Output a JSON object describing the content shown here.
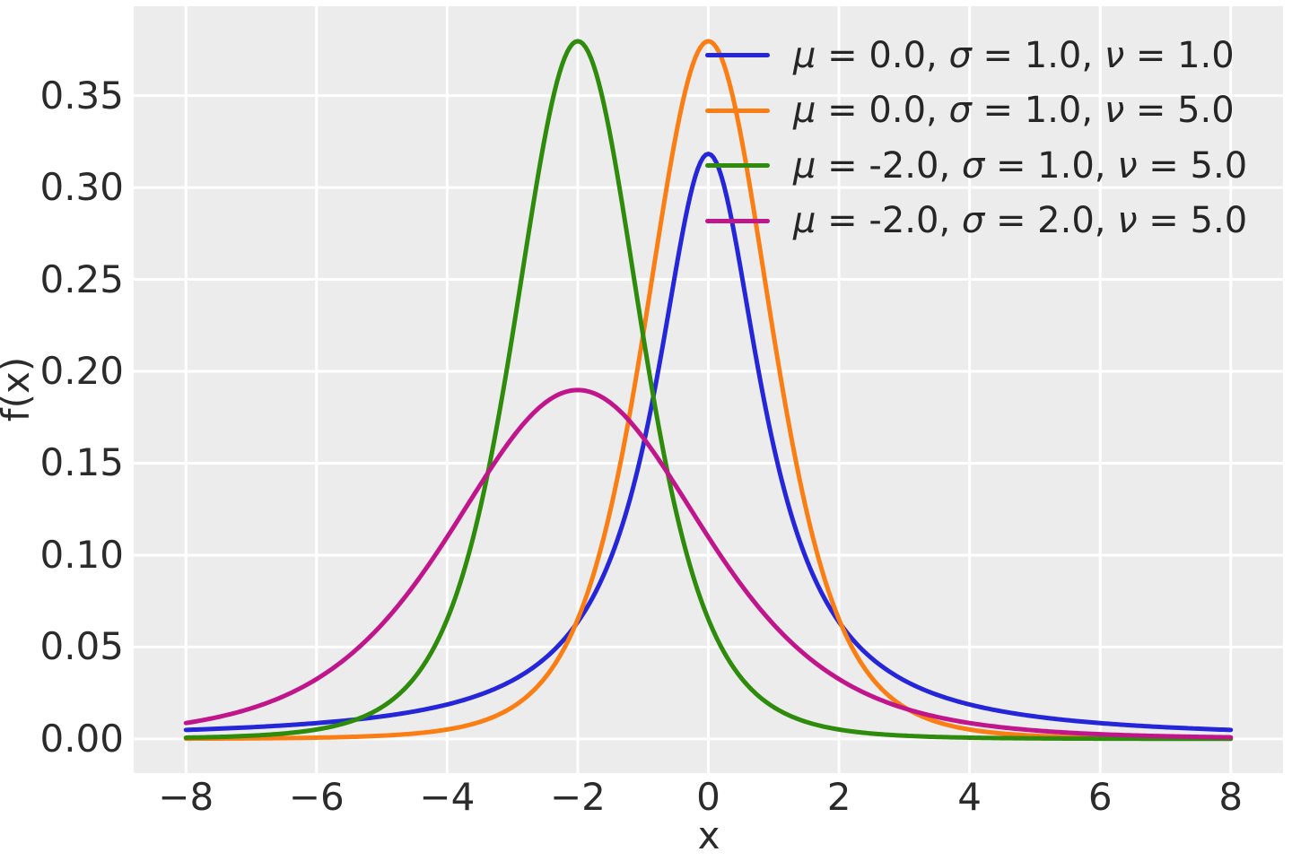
{
  "chart_data": {
    "type": "line",
    "title": "",
    "xlabel": "x",
    "ylabel": "f(x)",
    "xlim": [
      -8.8,
      8.8
    ],
    "ylim": [
      -0.0186,
      0.3986
    ],
    "x_sample_range": [
      -8,
      8
    ],
    "grid": true,
    "legend_position": "upper right",
    "plot_background": "#ececec",
    "grid_color": "#ffffff",
    "text_color": "#2b2b2b",
    "xticks": [
      {
        "v": -8,
        "label": "−8"
      },
      {
        "v": -6,
        "label": "−6"
      },
      {
        "v": -4,
        "label": "−4"
      },
      {
        "v": -2,
        "label": "−2"
      },
      {
        "v": 0,
        "label": "0"
      },
      {
        "v": 2,
        "label": "2"
      },
      {
        "v": 4,
        "label": "4"
      },
      {
        "v": 6,
        "label": "6"
      },
      {
        "v": 8,
        "label": "8"
      }
    ],
    "yticks": [
      {
        "v": 0.0,
        "label": "0.00"
      },
      {
        "v": 0.05,
        "label": "0.05"
      },
      {
        "v": 0.1,
        "label": "0.10"
      },
      {
        "v": 0.15,
        "label": "0.15"
      },
      {
        "v": 0.2,
        "label": "0.20"
      },
      {
        "v": 0.25,
        "label": "0.25"
      },
      {
        "v": 0.3,
        "label": "0.30"
      },
      {
        "v": 0.35,
        "label": "0.35"
      }
    ],
    "series": [
      {
        "label": "μ = 0.0, σ = 1.0, ν = 1.0",
        "distribution": "student-t",
        "mu": 0.0,
        "sigma": 1.0,
        "nu": 1.0,
        "color": "#2525d9",
        "peak_x": 0.0,
        "peak_y": 0.318
      },
      {
        "label": "μ = 0.0, σ = 1.0, ν = 5.0",
        "distribution": "student-t",
        "mu": 0.0,
        "sigma": 1.0,
        "nu": 5.0,
        "color": "#fb7e14",
        "peak_x": 0.0,
        "peak_y": 0.38
      },
      {
        "label": "μ = -2.0, σ = 1.0, ν = 5.0",
        "distribution": "student-t",
        "mu": -2.0,
        "sigma": 1.0,
        "nu": 5.0,
        "color": "#2e8b0c",
        "peak_x": -2.0,
        "peak_y": 0.38
      },
      {
        "label": "μ = -2.0, σ = 2.0, ν = 5.0",
        "distribution": "student-t",
        "mu": -2.0,
        "sigma": 2.0,
        "nu": 5.0,
        "color": "#c1158b",
        "peak_x": -2.0,
        "peak_y": 0.19
      }
    ]
  }
}
